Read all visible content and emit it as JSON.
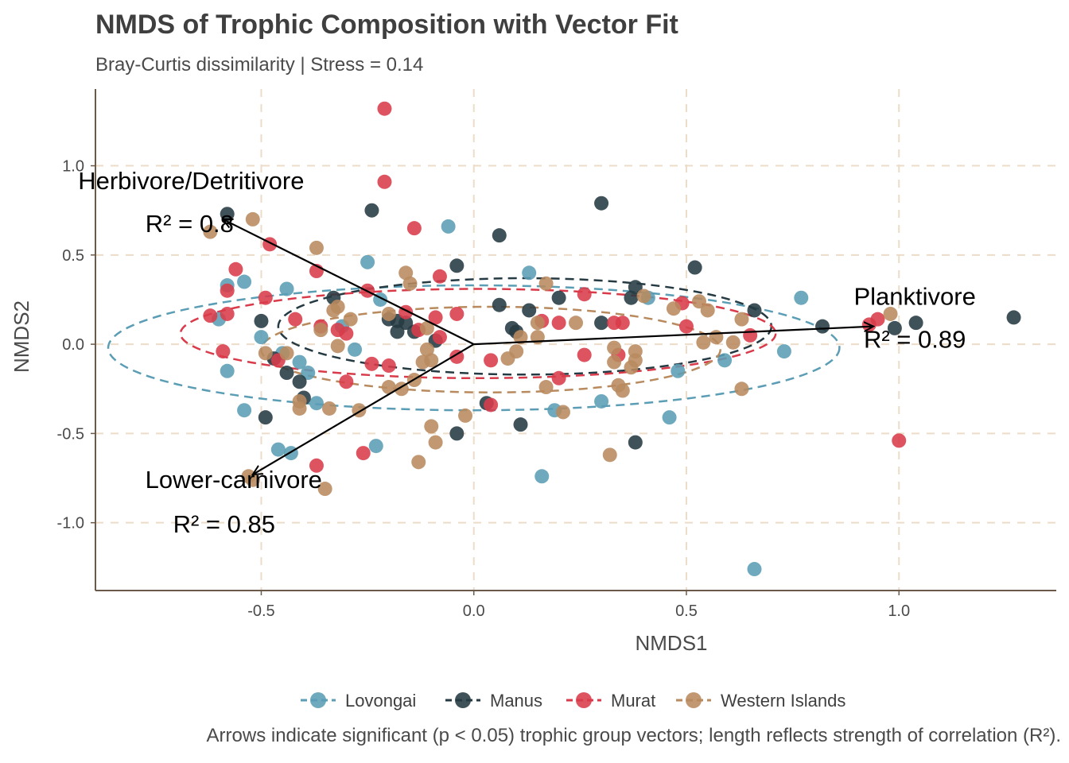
{
  "title": "NMDS of Trophic Composition with Vector Fit",
  "subtitle": "Bray-Curtis dissimilarity | Stress = 0.14",
  "caption": "Arrows indicate significant (p < 0.05) trophic group vectors; length reflects strength of correlation (R²).",
  "chart_data": {
    "type": "scatter",
    "xlabel": "NMDS1",
    "ylabel": "NMDS2",
    "xlim": [
      -0.89,
      1.37
    ],
    "ylim": [
      -1.38,
      1.43
    ],
    "xticks": [
      -0.5,
      0.0,
      0.5,
      1.0
    ],
    "xtick_labels": [
      "-0.5",
      "0.0",
      "0.5",
      "1.0"
    ],
    "yticks": [
      -1.0,
      -0.5,
      0.0,
      0.5,
      1.0
    ],
    "ytick_labels": [
      "-1.0",
      "-0.5",
      "0.0",
      "0.5",
      "1.0"
    ],
    "grid": true,
    "legend_position": "bottom",
    "series": [
      {
        "name": "Lovongai",
        "color": "#5b9db5",
        "ellipse": {
          "cx": 0.0,
          "cy": -0.02,
          "rx": 0.86,
          "ry": 0.35
        },
        "points": [
          [
            -0.6,
            0.14
          ],
          [
            -0.58,
            0.33
          ],
          [
            -0.54,
            0.35
          ],
          [
            -0.58,
            -0.15
          ],
          [
            -0.54,
            -0.37
          ],
          [
            -0.5,
            0.04
          ],
          [
            -0.45,
            -0.05
          ],
          [
            -0.44,
            0.31
          ],
          [
            -0.41,
            -0.1
          ],
          [
            -0.39,
            -0.16
          ],
          [
            -0.37,
            -0.33
          ],
          [
            -0.31,
            0.1
          ],
          [
            -0.28,
            -0.03
          ],
          [
            -0.25,
            0.46
          ],
          [
            -0.22,
            0.25
          ],
          [
            -0.23,
            -0.57
          ],
          [
            -0.46,
            -0.59
          ],
          [
            -0.43,
            -0.61
          ],
          [
            -0.06,
            0.66
          ],
          [
            0.13,
            0.4
          ],
          [
            0.16,
            -0.74
          ],
          [
            0.19,
            -0.37
          ],
          [
            0.3,
            -0.32
          ],
          [
            0.41,
            0.26
          ],
          [
            0.46,
            -0.41
          ],
          [
            0.48,
            -0.15
          ],
          [
            0.59,
            -0.09
          ],
          [
            0.66,
            -1.26
          ],
          [
            0.73,
            -0.04
          ],
          [
            0.77,
            0.26
          ]
        ]
      },
      {
        "name": "Manus",
        "color": "#253a42",
        "ellipse": {
          "cx": 0.12,
          "cy": 0.1,
          "rx": 0.58,
          "ry": 0.27
        },
        "points": [
          [
            -0.58,
            0.73
          ],
          [
            -0.5,
            0.13
          ],
          [
            -0.47,
            -0.08
          ],
          [
            -0.44,
            -0.16
          ],
          [
            -0.41,
            -0.21
          ],
          [
            -0.4,
            -0.3
          ],
          [
            -0.33,
            0.26
          ],
          [
            -0.24,
            0.75
          ],
          [
            -0.2,
            0.14
          ],
          [
            -0.18,
            0.13
          ],
          [
            -0.16,
            0.12
          ],
          [
            -0.18,
            0.07
          ],
          [
            -0.14,
            0.07
          ],
          [
            -0.09,
            0.02
          ],
          [
            -0.04,
            0.44
          ],
          [
            0.03,
            -0.33
          ],
          [
            0.06,
            0.22
          ],
          [
            0.06,
            0.61
          ],
          [
            0.09,
            0.09
          ],
          [
            0.1,
            0.07
          ],
          [
            0.13,
            0.19
          ],
          [
            0.2,
            0.26
          ],
          [
            0.3,
            0.79
          ],
          [
            0.3,
            0.12
          ],
          [
            0.37,
            0.26
          ],
          [
            0.38,
            0.32
          ],
          [
            0.38,
            -0.55
          ],
          [
            0.11,
            -0.45
          ],
          [
            -0.04,
            -0.5
          ],
          [
            -0.49,
            -0.41
          ],
          [
            0.52,
            0.43
          ],
          [
            0.66,
            0.19
          ],
          [
            0.82,
            0.1
          ],
          [
            0.99,
            0.09
          ],
          [
            1.04,
            0.12
          ],
          [
            1.27,
            0.15
          ]
        ]
      },
      {
        "name": "Murat",
        "color": "#d93b4a",
        "ellipse": {
          "cx": 0.01,
          "cy": 0.06,
          "rx": 0.7,
          "ry": 0.25
        },
        "points": [
          [
            -0.21,
            1.32
          ],
          [
            -0.21,
            0.91
          ],
          [
            -0.14,
            0.65
          ],
          [
            -0.48,
            0.56
          ],
          [
            -0.56,
            0.42
          ],
          [
            -0.58,
            0.3
          ],
          [
            -0.58,
            0.17
          ],
          [
            -0.62,
            0.16
          ],
          [
            -0.59,
            -0.04
          ],
          [
            -0.49,
            0.26
          ],
          [
            -0.46,
            -0.09
          ],
          [
            -0.42,
            0.14
          ],
          [
            -0.37,
            0.41
          ],
          [
            -0.36,
            0.1
          ],
          [
            -0.32,
            0.08
          ],
          [
            -0.3,
            0.06
          ],
          [
            -0.3,
            -0.21
          ],
          [
            -0.24,
            -0.11
          ],
          [
            -0.2,
            -0.12
          ],
          [
            -0.25,
            0.3
          ],
          [
            -0.16,
            0.18
          ],
          [
            -0.13,
            0.08
          ],
          [
            -0.09,
            0.15
          ],
          [
            -0.08,
            0.04
          ],
          [
            -0.04,
            0.17
          ],
          [
            -0.04,
            -0.07
          ],
          [
            -0.08,
            0.38
          ],
          [
            0.04,
            -0.34
          ],
          [
            0.04,
            -0.09
          ],
          [
            0.16,
            0.13
          ],
          [
            0.2,
            0.12
          ],
          [
            0.2,
            -0.19
          ],
          [
            0.26,
            0.28
          ],
          [
            0.26,
            -0.06
          ],
          [
            0.33,
            0.12
          ],
          [
            0.34,
            -0.06
          ],
          [
            0.35,
            0.12
          ],
          [
            0.49,
            0.23
          ],
          [
            0.5,
            0.1
          ],
          [
            0.65,
            0.05
          ],
          [
            0.93,
            0.11
          ],
          [
            0.95,
            0.14
          ],
          [
            1.0,
            -0.54
          ],
          [
            -0.26,
            -0.61
          ],
          [
            -0.37,
            -0.68
          ]
        ]
      },
      {
        "name": "Western Islands",
        "color": "#b88a5e",
        "ellipse": {
          "cx": 0.04,
          "cy": -0.03,
          "rx": 0.54,
          "ry": 0.24
        },
        "points": [
          [
            -0.62,
            0.63
          ],
          [
            -0.52,
            0.7
          ],
          [
            -0.37,
            0.54
          ],
          [
            -0.33,
            0.19
          ],
          [
            -0.32,
            0.21
          ],
          [
            -0.29,
            0.14
          ],
          [
            -0.36,
            0.08
          ],
          [
            -0.32,
            -0.01
          ],
          [
            -0.44,
            -0.05
          ],
          [
            -0.49,
            -0.05
          ],
          [
            -0.41,
            -0.36
          ],
          [
            -0.41,
            -0.32
          ],
          [
            -0.34,
            -0.36
          ],
          [
            -0.27,
            -0.37
          ],
          [
            -0.2,
            0.17
          ],
          [
            -0.2,
            -0.24
          ],
          [
            -0.16,
            0.4
          ],
          [
            -0.15,
            0.34
          ],
          [
            -0.11,
            0.09
          ],
          [
            -0.11,
            -0.03
          ],
          [
            -0.1,
            -0.09
          ],
          [
            -0.12,
            -0.1
          ],
          [
            -0.14,
            -0.2
          ],
          [
            -0.17,
            -0.25
          ],
          [
            -0.1,
            -0.46
          ],
          [
            -0.09,
            -0.55
          ],
          [
            -0.13,
            -0.66
          ],
          [
            -0.02,
            -0.4
          ],
          [
            0.08,
            -0.08
          ],
          [
            0.1,
            -0.04
          ],
          [
            0.11,
            0.04
          ],
          [
            0.15,
            0.12
          ],
          [
            0.15,
            0.04
          ],
          [
            0.17,
            -0.24
          ],
          [
            0.17,
            0.34
          ],
          [
            0.21,
            -0.38
          ],
          [
            0.24,
            0.12
          ],
          [
            0.33,
            -0.02
          ],
          [
            0.33,
            -0.1
          ],
          [
            0.34,
            -0.23
          ],
          [
            0.35,
            -0.26
          ],
          [
            0.37,
            -0.13
          ],
          [
            0.38,
            -0.09
          ],
          [
            0.38,
            -0.04
          ],
          [
            0.4,
            0.27
          ],
          [
            0.47,
            0.2
          ],
          [
            0.53,
            0.24
          ],
          [
            0.55,
            0.19
          ],
          [
            0.54,
            0.01
          ],
          [
            0.57,
            0.04
          ],
          [
            0.61,
            0.01
          ],
          [
            0.63,
            0.14
          ],
          [
            0.63,
            -0.25
          ],
          [
            0.32,
            -0.62
          ],
          [
            0.98,
            0.17
          ],
          [
            -0.53,
            -0.74
          ],
          [
            -0.35,
            -0.81
          ],
          [
            -0.52,
            -0.76
          ]
        ]
      }
    ],
    "vectors": [
      {
        "name": "Herbivore/Detritivore",
        "r2_label": "R² = 0.8",
        "x": -0.59,
        "y": 0.7
      },
      {
        "name": "Planktivore",
        "r2_label": "R² = 0.89",
        "x": 0.94,
        "y": 0.1
      },
      {
        "name": "Lower-carnivore",
        "r2_label": "R² = 0.85",
        "x": -0.52,
        "y": -0.73
      }
    ]
  }
}
